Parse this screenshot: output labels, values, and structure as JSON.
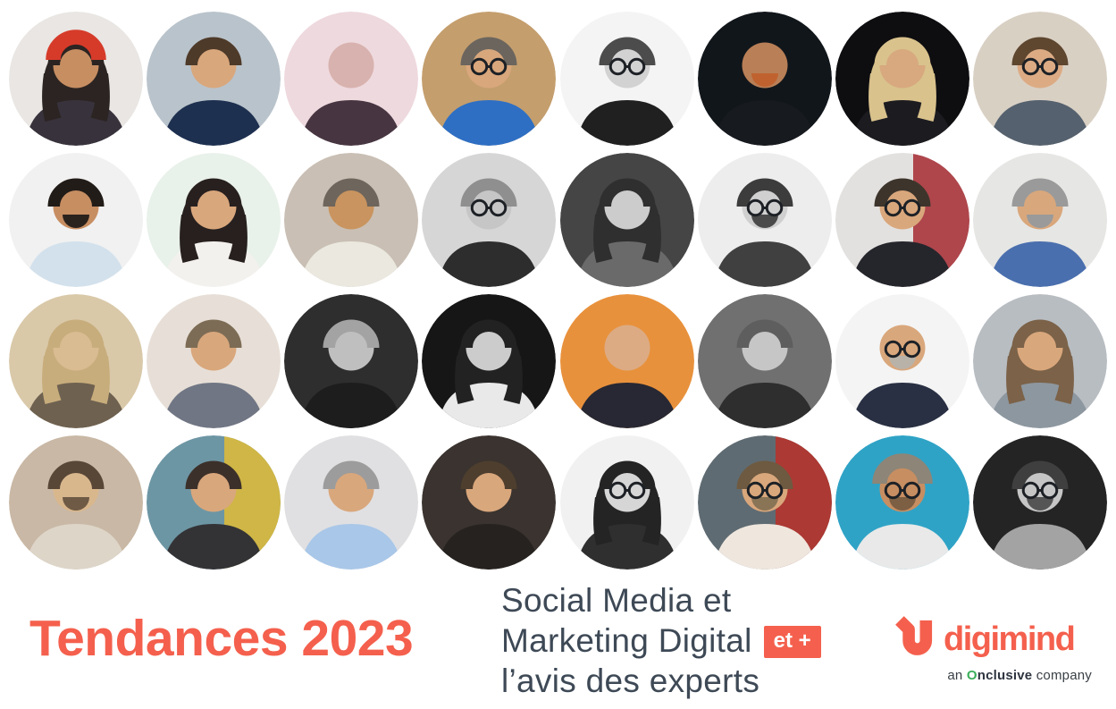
{
  "colors": {
    "coral": "#f4604d",
    "slate": "#3e4956",
    "tagline": "#3a4046",
    "green": "#3aae5a",
    "bg": "#ffffff"
  },
  "title": {
    "text": "Tendances 2023"
  },
  "subtitle": {
    "line1": "Social Media et",
    "line2": "Marketing Digital",
    "badge": "et +",
    "line3": "l’avis des experts"
  },
  "logo": {
    "name": "digimind",
    "tagline": {
      "prefix": "an ",
      "brand_o": "O",
      "brand_rest": "nclusive",
      "suffix": " company"
    }
  },
  "portraits": {
    "rows": 4,
    "columns": 8,
    "count": 32,
    "items": [
      {
        "d": "woman with red beret and curly hair holding a vintage microphone",
        "bg": "#e9e6e3",
        "skin": "#c78e62",
        "hair": "#2b2422",
        "long": true,
        "shirt": "#38323c",
        "hat": "#d63b2a"
      },
      {
        "d": "man in navy suit and white shirt on blue-grey background",
        "bg": "#b9c3cb",
        "skin": "#d9a77c",
        "hair": "#4e3a29",
        "shirt": "#1e3050"
      },
      {
        "d": "bald man, pink-toned monochrome portrait",
        "bg": "#eed9de",
        "skin": "#d8b2ae",
        "shirt": "#473641"
      },
      {
        "d": "smiling man with glasses in blue shirt against wooden wall",
        "bg": "#c49e6d",
        "skin": "#d9a77c",
        "hair": "#6b655e",
        "shirt": "#2e6fc4",
        "gl": true
      },
      {
        "d": "smiling woman with glasses, black-and-white portrait",
        "bg": "#f4f4f4",
        "skin": "#d2d2d2",
        "hair": "#4c4c4c",
        "shirt": "#202020",
        "gl": true
      },
      {
        "d": "bald man with ginger beard, dark moody portrait",
        "bg": "#11161b",
        "skin": "#b97f56",
        "beard": "#c0622f",
        "shirt": "#171a1f"
      },
      {
        "d": "blonde woman in black blazer on black background",
        "bg": "#0e0e11",
        "skin": "#d8a87e",
        "hair": "#d9c28c",
        "long": true,
        "shirt": "#1c1c20"
      },
      {
        "d": "man with glasses and bow tie on beige background",
        "bg": "#d9d0c4",
        "skin": "#dcab84",
        "hair": "#5e462f",
        "shirt": "#55616e",
        "gl": true
      },
      {
        "d": "young man with goatee in light blue shirt",
        "bg": "#f1f1f1",
        "skin": "#c78e62",
        "hair": "#221c18",
        "beard": "#2a221d",
        "shirt": "#d3e1ec"
      },
      {
        "d": "woman with dark hair and hoop earrings in white jacket",
        "bg": "#e8f1ea",
        "skin": "#d9a77c",
        "hair": "#27201f",
        "long": true,
        "shirt": "#f3f1ee"
      },
      {
        "d": "man in white polo shirt at home",
        "bg": "#c9bfb4",
        "skin": "#c9945f",
        "hair": "#6e655c",
        "shirt": "#eae8df"
      },
      {
        "d": "man with black-framed glasses, black-and-white portrait",
        "bg": "#d6d6d6",
        "skin": "#c6c6c6",
        "hair": "#8f8f8f",
        "shirt": "#2d2d2d",
        "gl": true
      },
      {
        "d": "woman with long dark hair and patterned scarf, black-and-white",
        "bg": "#454545",
        "skin": "#cccccc",
        "hair": "#2f2f2f",
        "long": true,
        "shirt": "#6a6a6a"
      },
      {
        "d": "man with round glasses and beard, black-and-white",
        "bg": "#ededed",
        "skin": "#d0d0d0",
        "hair": "#3c3c3c",
        "beard": "#4a4a4a",
        "shirt": "#404040",
        "gl": true
      },
      {
        "d": "man with glasses in dark jacket beside red artwork",
        "bg": "#e3e1df",
        "bg2": "#a8353c",
        "skin": "#d9a77c",
        "hair": "#3d352c",
        "shirt": "#25262c",
        "gl": true
      },
      {
        "d": "man with grey beard in blue blazer, arms crossed",
        "bg": "#e6e6e4",
        "skin": "#d9a77c",
        "hair": "#9a9a9a",
        "beard": "#9a9a9a",
        "shirt": "#4a6fae"
      },
      {
        "d": "woman with long fair hair, sepia portrait",
        "bg": "#d9c9a9",
        "skin": "#d9bc92",
        "hair": "#c8ad7c",
        "long": true,
        "shirt": "#6e6150"
      },
      {
        "d": "man in grey suit with arms crossed",
        "bg": "#e7dfd7",
        "skin": "#d9a77c",
        "hair": "#7d6c55",
        "shirt": "#707684"
      },
      {
        "d": "grey-haired man, black-and-white on dark background",
        "bg": "#2e2e2e",
        "skin": "#bfbfbf",
        "hair": "#a3a3a3",
        "shirt": "#1d1d1d"
      },
      {
        "d": "smiling woman looking over her shoulder, black-and-white",
        "bg": "#161616",
        "skin": "#cccccc",
        "hair": "#222222",
        "long": true,
        "shirt": "#e9e9e9"
      },
      {
        "d": "bald man in dark suit on orange background",
        "bg": "#e8913c",
        "skin": "#dcab84",
        "shirt": "#272833"
      },
      {
        "d": "woman with hair up, black-and-white studio portrait",
        "bg": "#707070",
        "skin": "#c6c6c6",
        "hair": "#5e5e5e",
        "shirt": "#2e2e2e"
      },
      {
        "d": "bald man with glasses holding a camera",
        "bg": "#f4f4f4",
        "skin": "#d9a77c",
        "beard": "#b9b2a8",
        "shirt": "#293043",
        "gl": true
      },
      {
        "d": "woman with long brown hair sitting in a car",
        "bg": "#b8bdc2",
        "skin": "#d9a77c",
        "hair": "#7b6248",
        "long": true,
        "shirt": "#8d97a0"
      },
      {
        "d": "smiling bearded man, sepia-toned portrait",
        "bg": "#c9b8a5",
        "skin": "#d9b78d",
        "hair": "#584737",
        "beard": "#6e5a45",
        "shirt": "#ddd5c8"
      },
      {
        "d": "smiling woman with hair up in colourful workspace",
        "bg": "#6d96a4",
        "bg2": "#d9b93c",
        "skin": "#d9a77c",
        "hair": "#3c302a",
        "shirt": "#333336"
      },
      {
        "d": "smiling grey-haired man in light blue shirt",
        "bg": "#e0e0e2",
        "skin": "#d9a77c",
        "hair": "#9c9c9c",
        "shirt": "#a9c7e8"
      },
      {
        "d": "man in dark suit with white shirt, moody portrait",
        "bg": "#3a332f",
        "skin": "#d9a77c",
        "hair": "#4e3e2e",
        "shirt": "#26221f"
      },
      {
        "d": "smiling woman with glasses and dark bob, black-and-white",
        "bg": "#f1f1f1",
        "skin": "#d6d6d6",
        "hair": "#242424",
        "long": true,
        "shirt": "#2f2f2f",
        "gl": true
      },
      {
        "d": "man with glasses in patterned shirt, colourful background",
        "bg": "#5f6b72",
        "bg2": "#b5342c",
        "skin": "#d9a77c",
        "hair": "#6e5a40",
        "beard": "#8a7456",
        "shirt": "#efe7de",
        "gl": true
      },
      {
        "d": "man with backwards cap and sunglasses on a boat at sea",
        "bg": "#2fa3c6",
        "skin": "#c78e62",
        "hat": "#8d8577",
        "beard": "#7d5f43",
        "shirt": "#e9e9e9",
        "gl": true
      },
      {
        "d": "man with glasses and beard in grey suit, hand on chin, black-and-white",
        "bg": "#242424",
        "skin": "#c6c6c6",
        "hair": "#3f3f3f",
        "beard": "#555555",
        "shirt": "#a3a3a3",
        "gl": true
      }
    ]
  }
}
